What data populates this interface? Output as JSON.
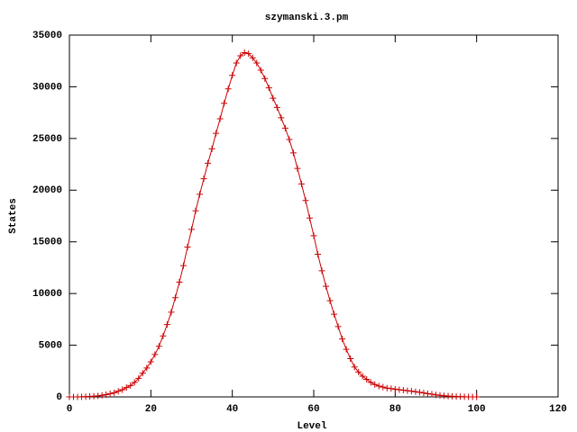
{
  "chart_data": {
    "type": "line",
    "title": "szymanski.3.pm",
    "x_label": "Level",
    "y_label": "States",
    "x": [
      0,
      1,
      2,
      3,
      4,
      5,
      6,
      7,
      8,
      9,
      10,
      11,
      12,
      13,
      14,
      15,
      16,
      17,
      18,
      19,
      20,
      21,
      22,
      23,
      24,
      25,
      26,
      27,
      28,
      29,
      30,
      31,
      32,
      33,
      34,
      35,
      36,
      37,
      38,
      39,
      40,
      41,
      42,
      43,
      44,
      45,
      46,
      47,
      48,
      49,
      50,
      51,
      52,
      53,
      54,
      55,
      56,
      57,
      58,
      59,
      60,
      61,
      62,
      63,
      64,
      65,
      66,
      67,
      68,
      69,
      70,
      71,
      72,
      73,
      74,
      75,
      76,
      77,
      78,
      79,
      80,
      81,
      82,
      83,
      84,
      85,
      86,
      87,
      88,
      89,
      90,
      91,
      92,
      93,
      94,
      95,
      96,
      97,
      98,
      99,
      100
    ],
    "series": [
      {
        "color": "#cc0000",
        "marker": "+",
        "values": [
          0,
          0,
          0,
          10,
          20,
          40,
          70,
          100,
          150,
          220,
          300,
          400,
          550,
          700,
          900,
          1100,
          1400,
          1800,
          2300,
          2800,
          3400,
          4100,
          4900,
          5900,
          7000,
          8200,
          9600,
          11100,
          12700,
          14500,
          16200,
          18000,
          19600,
          21100,
          22600,
          24000,
          25500,
          26900,
          28400,
          29800,
          31100,
          32300,
          33000,
          33300,
          33200,
          32800,
          32300,
          31600,
          30800,
          29900,
          28900,
          28000,
          27000,
          26000,
          24900,
          23600,
          22100,
          20600,
          19000,
          17300,
          15600,
          13800,
          12200,
          10700,
          9300,
          8000,
          6800,
          5600,
          4600,
          3700,
          2900,
          2400,
          2000,
          1700,
          1400,
          1200,
          1050,
          950,
          850,
          800,
          750,
          700,
          650,
          600,
          550,
          500,
          450,
          380,
          320,
          260,
          200,
          150,
          110,
          80,
          50,
          30,
          20,
          10,
          5,
          2,
          0
        ]
      }
    ],
    "xlim": [
      0,
      120
    ],
    "xticks": [
      0,
      20,
      40,
      60,
      80,
      100,
      120
    ],
    "ylim": [
      0,
      35000
    ],
    "yticks": [
      0,
      5000,
      10000,
      15000,
      20000,
      25000,
      30000,
      35000
    ]
  }
}
